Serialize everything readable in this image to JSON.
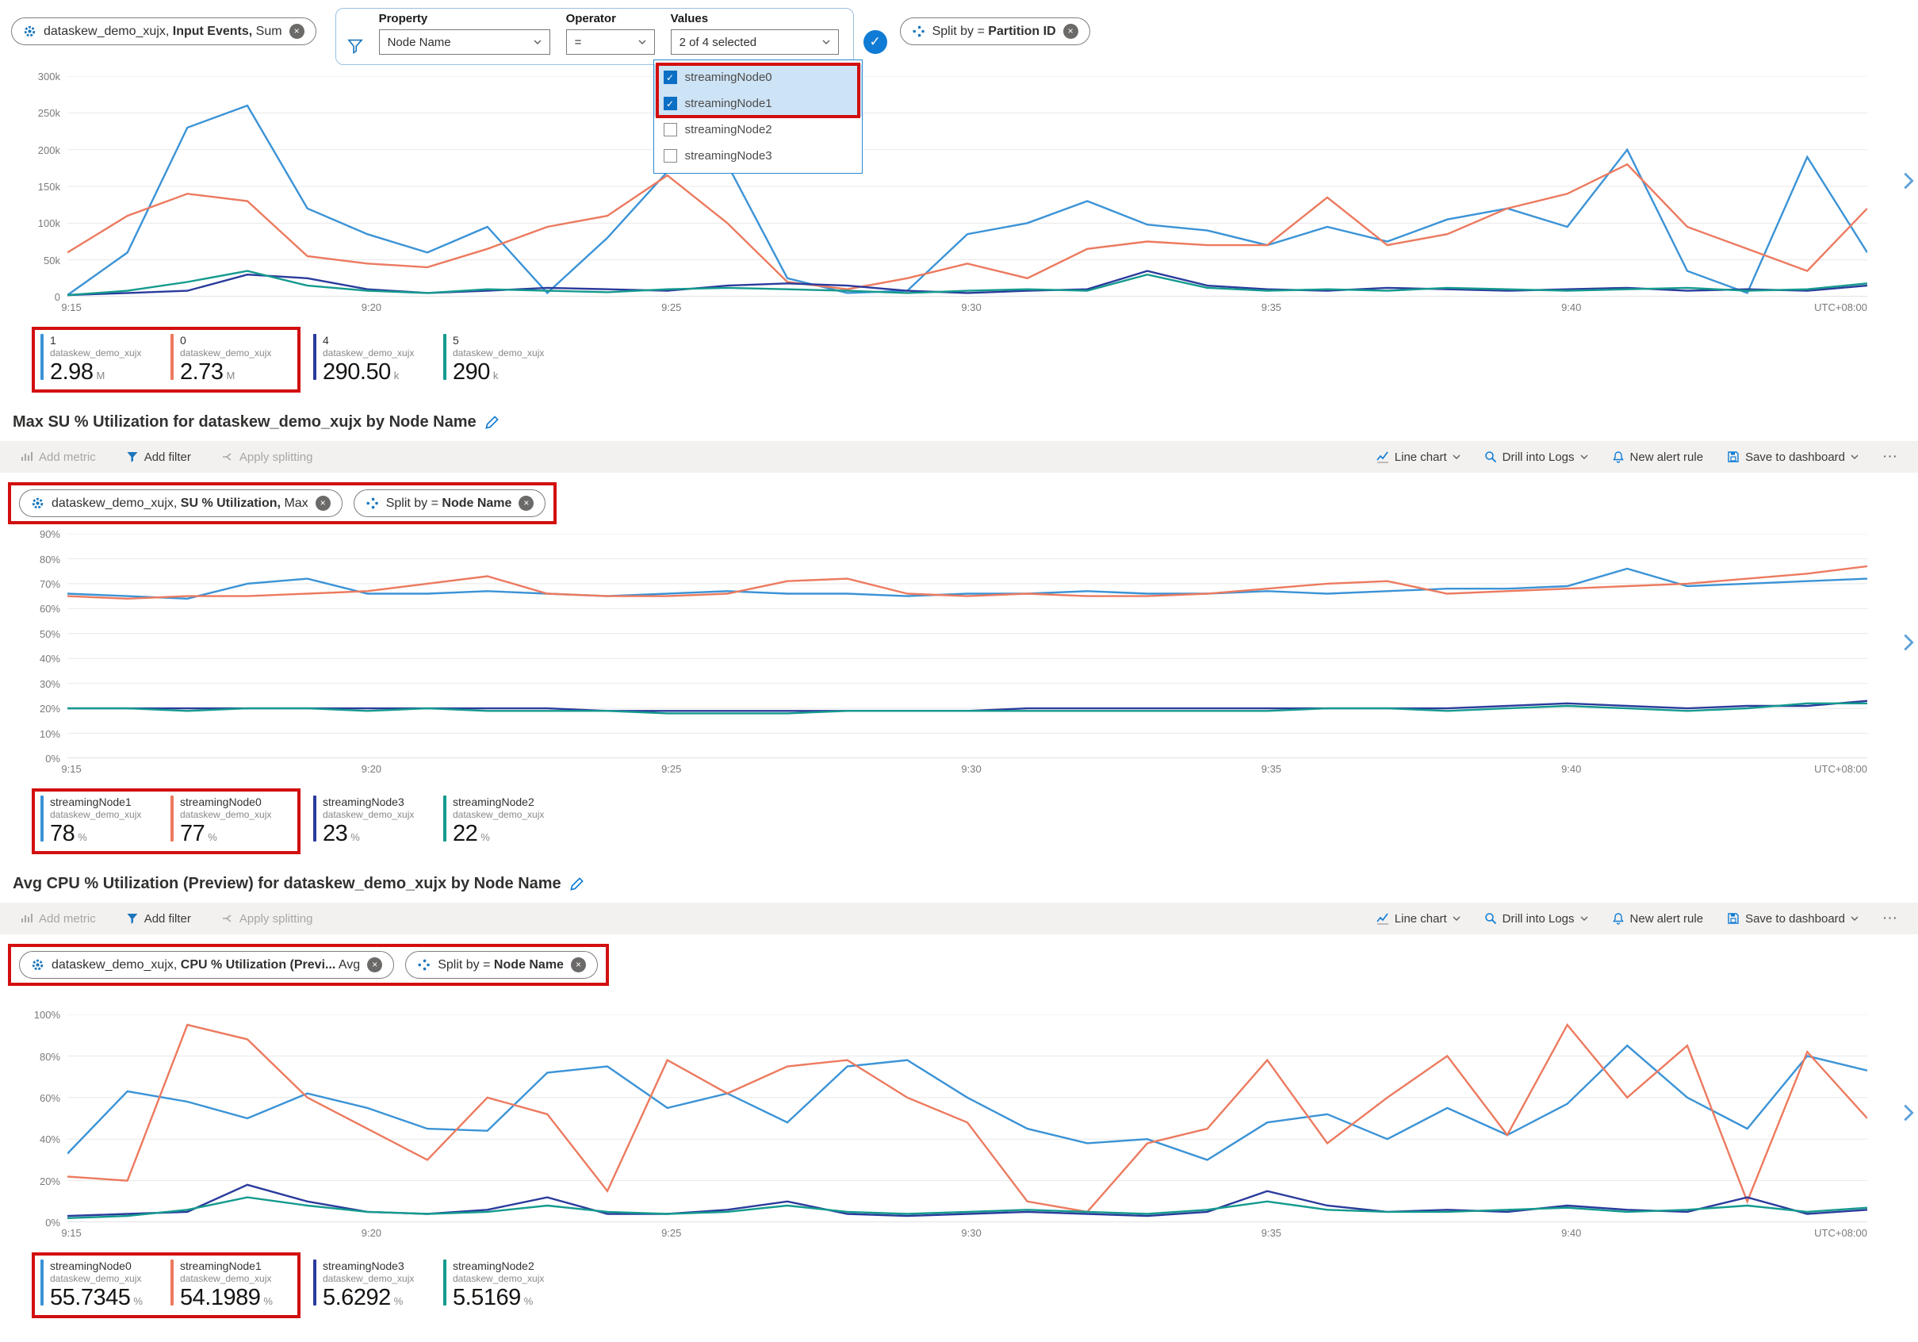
{
  "colors": {
    "blue": "#3b93d6",
    "orange": "#ec7a5f",
    "navy": "#2a3b9c",
    "teal": "#149a8e",
    "accent": "#0f7bd4",
    "red_box": "#d20f0f"
  },
  "filter_editor": {
    "property_label": "Property",
    "operator_label": "Operator",
    "values_label": "Values",
    "property_value": "Node Name",
    "operator_value": "=",
    "values_value": "2 of 4 selected",
    "options": [
      {
        "label": "streamingNode0",
        "checked": true
      },
      {
        "label": "streamingNode1",
        "checked": true
      },
      {
        "label": "streamingNode2",
        "checked": false
      },
      {
        "label": "streamingNode3",
        "checked": false
      }
    ]
  },
  "toolbar": {
    "add_metric": "Add metric",
    "add_filter": "Add filter",
    "apply_splitting": "Apply splitting",
    "line_chart": "Line chart",
    "drill_into_logs": "Drill into Logs",
    "new_alert_rule": "New alert rule",
    "save_to_dashboard": "Save to dashboard",
    "more": "···"
  },
  "sections": [
    {
      "metric_pill": {
        "resource": "dataskew_demo_xujx,",
        "metric": "Input Events,",
        "agg": "Sum"
      },
      "split_pill": {
        "prefix": "Split by =",
        "value": "Partition ID"
      },
      "legend": [
        {
          "name": "1",
          "resource": "dataskew_demo_xujx",
          "value": "2.98",
          "unit": "M",
          "color": "blue"
        },
        {
          "name": "0",
          "resource": "dataskew_demo_xujx",
          "value": "2.73",
          "unit": "M",
          "color": "orange"
        },
        {
          "name": "4",
          "resource": "dataskew_demo_xujx",
          "value": "290.50",
          "unit": "k",
          "color": "navy"
        },
        {
          "name": "5",
          "resource": "dataskew_demo_xujx",
          "value": "290",
          "unit": "k",
          "color": "teal"
        }
      ]
    },
    {
      "title": "Max SU % Utilization for dataskew_demo_xujx by Node Name",
      "metric_pill": {
        "resource": "dataskew_demo_xujx,",
        "metric": "SU % Utilization,",
        "agg": "Max"
      },
      "split_pill": {
        "prefix": "Split by =",
        "value": "Node Name"
      },
      "legend": [
        {
          "name": "streamingNode1",
          "resource": "dataskew_demo_xujx",
          "value": "78",
          "unit": "%",
          "color": "blue"
        },
        {
          "name": "streamingNode0",
          "resource": "dataskew_demo_xujx",
          "value": "77",
          "unit": "%",
          "color": "orange"
        },
        {
          "name": "streamingNode3",
          "resource": "dataskew_demo_xujx",
          "value": "23",
          "unit": "%",
          "color": "navy"
        },
        {
          "name": "streamingNode2",
          "resource": "dataskew_demo_xujx",
          "value": "22",
          "unit": "%",
          "color": "teal"
        }
      ]
    },
    {
      "title": "Avg CPU % Utilization (Preview) for dataskew_demo_xujx by Node Name",
      "metric_pill": {
        "resource": "dataskew_demo_xujx,",
        "metric": "CPU % Utilization (Previ...",
        "agg": "Avg"
      },
      "split_pill": {
        "prefix": "Split by =",
        "value": "Node Name"
      },
      "legend": [
        {
          "name": "streamingNode0",
          "resource": "dataskew_demo_xujx",
          "value": "55.7345",
          "unit": "%",
          "color": "blue"
        },
        {
          "name": "streamingNode1",
          "resource": "dataskew_demo_xujx",
          "value": "54.1989",
          "unit": "%",
          "color": "orange"
        },
        {
          "name": "streamingNode3",
          "resource": "dataskew_demo_xujx",
          "value": "5.6292",
          "unit": "%",
          "color": "navy"
        },
        {
          "name": "streamingNode2",
          "resource": "dataskew_demo_xujx",
          "value": "5.5169",
          "unit": "%",
          "color": "teal"
        }
      ]
    }
  ],
  "chart_data": [
    {
      "type": "line",
      "ylim": [
        0,
        300000
      ],
      "yticks": [
        "300k",
        "250k",
        "200k",
        "150k",
        "100k",
        "50k",
        "0"
      ],
      "xticks": [
        {
          "label": "9:15",
          "min": 0
        },
        {
          "label": "9:20",
          "min": 5
        },
        {
          "label": "9:25",
          "min": 10
        },
        {
          "label": "9:30",
          "min": 15
        },
        {
          "label": "9:35",
          "min": 20
        },
        {
          "label": "9:40",
          "min": 25
        }
      ],
      "x_end_label": "UTC+08:00",
      "x_span_min": 30,
      "series": [
        {
          "name": "1",
          "color": "blue",
          "values": [
            2000,
            60000,
            230000,
            260000,
            120000,
            85000,
            60000,
            95000,
            5000,
            80000,
            170000,
            180000,
            25000,
            5000,
            8000,
            85000,
            100000,
            130000,
            98000,
            90000,
            70000,
            95000,
            75000,
            105000,
            120000,
            95000,
            200000,
            35000,
            5000,
            190000,
            60000
          ]
        },
        {
          "name": "0",
          "color": "orange",
          "values": [
            60000,
            110000,
            140000,
            130000,
            55000,
            45000,
            40000,
            65000,
            95000,
            110000,
            165000,
            100000,
            20000,
            10000,
            25000,
            45000,
            25000,
            65000,
            75000,
            70000,
            70000,
            135000,
            70000,
            85000,
            120000,
            140000,
            180000,
            95000,
            65000,
            35000,
            120000
          ]
        },
        {
          "name": "4",
          "color": "navy",
          "values": [
            2000,
            5000,
            8000,
            30000,
            25000,
            10000,
            5000,
            8000,
            12000,
            10000,
            8000,
            15000,
            18000,
            15000,
            8000,
            5000,
            8000,
            10000,
            35000,
            15000,
            10000,
            8000,
            12000,
            10000,
            8000,
            10000,
            12000,
            8000,
            10000,
            8000,
            15000
          ]
        },
        {
          "name": "5",
          "color": "teal",
          "values": [
            2000,
            8000,
            20000,
            35000,
            15000,
            8000,
            5000,
            10000,
            8000,
            6000,
            10000,
            12000,
            10000,
            8000,
            5000,
            8000,
            10000,
            8000,
            30000,
            12000,
            8000,
            10000,
            8000,
            12000,
            10000,
            8000,
            10000,
            12000,
            8000,
            10000,
            18000
          ]
        }
      ]
    },
    {
      "type": "line",
      "ylim": [
        0,
        90
      ],
      "yticks": [
        "90%",
        "80%",
        "70%",
        "60%",
        "50%",
        "40%",
        "30%",
        "20%",
        "10%",
        "0%"
      ],
      "xticks": [
        {
          "label": "9:15",
          "min": 0
        },
        {
          "label": "9:20",
          "min": 5
        },
        {
          "label": "9:25",
          "min": 10
        },
        {
          "label": "9:30",
          "min": 15
        },
        {
          "label": "9:35",
          "min": 20
        },
        {
          "label": "9:40",
          "min": 25
        }
      ],
      "x_end_label": "UTC+08:00",
      "x_span_min": 30,
      "series": [
        {
          "name": "streamingNode1",
          "color": "blue",
          "values": [
            66,
            65,
            64,
            70,
            72,
            66,
            66,
            67,
            66,
            65,
            66,
            67,
            66,
            66,
            65,
            66,
            66,
            67,
            66,
            66,
            67,
            66,
            67,
            68,
            68,
            69,
            76,
            69,
            70,
            71,
            72
          ]
        },
        {
          "name": "streamingNode0",
          "color": "orange",
          "values": [
            65,
            64,
            65,
            65,
            66,
            67,
            70,
            73,
            66,
            65,
            65,
            66,
            71,
            72,
            66,
            65,
            66,
            65,
            65,
            66,
            68,
            70,
            71,
            66,
            67,
            68,
            69,
            70,
            72,
            74,
            77
          ]
        },
        {
          "name": "streamingNode3",
          "color": "navy",
          "values": [
            20,
            20,
            20,
            20,
            20,
            20,
            20,
            20,
            20,
            19,
            19,
            19,
            19,
            19,
            19,
            19,
            20,
            20,
            20,
            20,
            20,
            20,
            20,
            20,
            21,
            22,
            21,
            20,
            21,
            21,
            23
          ]
        },
        {
          "name": "streamingNode2",
          "color": "teal",
          "values": [
            20,
            20,
            19,
            20,
            20,
            19,
            20,
            19,
            19,
            19,
            18,
            18,
            18,
            19,
            19,
            19,
            19,
            19,
            19,
            19,
            19,
            20,
            20,
            19,
            20,
            21,
            20,
            19,
            20,
            22,
            22
          ]
        }
      ]
    },
    {
      "type": "line",
      "ylim": [
        0,
        100
      ],
      "yticks": [
        "100%",
        "80%",
        "60%",
        "40%",
        "20%",
        "0%"
      ],
      "xticks": [
        {
          "label": "9:15",
          "min": 0
        },
        {
          "label": "9:20",
          "min": 5
        },
        {
          "label": "9:25",
          "min": 10
        },
        {
          "label": "9:30",
          "min": 15
        },
        {
          "label": "9:35",
          "min": 20
        },
        {
          "label": "9:40",
          "min": 25
        }
      ],
      "x_end_label": "UTC+08:00",
      "x_span_min": 30,
      "series": [
        {
          "name": "streamingNode0",
          "color": "blue",
          "values": [
            33,
            63,
            58,
            50,
            62,
            55,
            45,
            44,
            72,
            75,
            55,
            62,
            48,
            75,
            78,
            60,
            45,
            38,
            40,
            30,
            48,
            52,
            40,
            55,
            42,
            57,
            85,
            60,
            45,
            80,
            73
          ]
        },
        {
          "name": "streamingNode1",
          "color": "orange",
          "values": [
            22,
            20,
            95,
            88,
            60,
            45,
            30,
            60,
            52,
            15,
            78,
            62,
            75,
            78,
            60,
            48,
            10,
            5,
            38,
            45,
            78,
            38,
            60,
            80,
            42,
            95,
            60,
            85,
            10,
            82,
            50
          ]
        },
        {
          "name": "streamingNode3",
          "color": "navy",
          "values": [
            3,
            4,
            5,
            18,
            10,
            5,
            4,
            6,
            12,
            4,
            4,
            6,
            10,
            4,
            3,
            4,
            5,
            4,
            3,
            5,
            15,
            8,
            5,
            6,
            5,
            8,
            6,
            5,
            12,
            4,
            6
          ]
        },
        {
          "name": "streamingNode2",
          "color": "teal",
          "values": [
            2,
            3,
            6,
            12,
            8,
            5,
            4,
            5,
            8,
            5,
            4,
            5,
            8,
            5,
            4,
            5,
            6,
            5,
            4,
            6,
            10,
            6,
            5,
            5,
            6,
            7,
            5,
            6,
            8,
            5,
            7
          ]
        }
      ]
    }
  ]
}
